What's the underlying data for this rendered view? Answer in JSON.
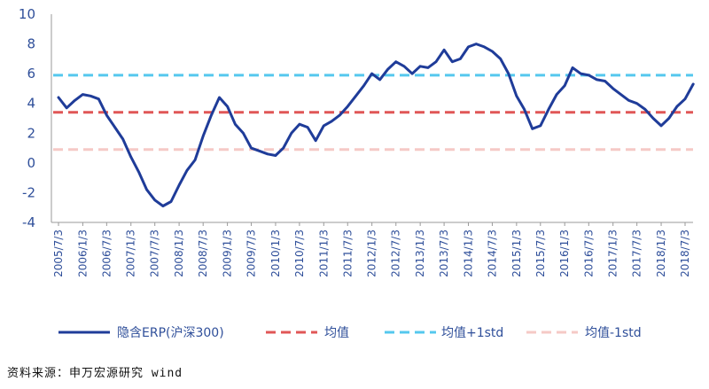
{
  "chart_data": {
    "type": "line",
    "ylim": [
      -4,
      10
    ],
    "yticks": [
      "10",
      "8",
      "6",
      "4",
      "2",
      "0",
      "-2",
      "-4"
    ],
    "x_tick_labels": [
      "2005/7/3",
      "2006/1/3",
      "2006/7/3",
      "2007/1/3",
      "2007/7/3",
      "2008/1/3",
      "2008/7/3",
      "2009/1/3",
      "2009/7/3",
      "2010/1/3",
      "2010/7/3",
      "2011/1/3",
      "2011/7/3",
      "2012/1/3",
      "2012/7/3",
      "2013/1/3",
      "2013/7/3",
      "2014/1/3",
      "2014/7/3",
      "2015/1/3",
      "2015/7/3",
      "2016/1/3",
      "2016/7/3",
      "2017/1/3",
      "2017/7/3",
      "2018/1/3",
      "2018/7/3"
    ],
    "series": [
      {
        "name": "隐含ERP(沪深300)",
        "color": "#1f3c99",
        "style": "solid",
        "points": [
          [
            "2005/7/3",
            4.4
          ],
          [
            "2005/9/3",
            3.7
          ],
          [
            "2005/11/3",
            4.2
          ],
          [
            "2006/1/3",
            4.6
          ],
          [
            "2006/3/3",
            4.5
          ],
          [
            "2006/5/3",
            4.3
          ],
          [
            "2006/7/3",
            3.2
          ],
          [
            "2006/9/3",
            2.4
          ],
          [
            "2006/11/3",
            1.6
          ],
          [
            "2007/1/3",
            0.4
          ],
          [
            "2007/3/3",
            -0.6
          ],
          [
            "2007/5/3",
            -1.8
          ],
          [
            "2007/7/3",
            -2.5
          ],
          [
            "2007/9/3",
            -2.9
          ],
          [
            "2007/11/3",
            -2.6
          ],
          [
            "2008/1/3",
            -1.5
          ],
          [
            "2008/3/3",
            -0.5
          ],
          [
            "2008/5/3",
            0.2
          ],
          [
            "2008/7/3",
            1.8
          ],
          [
            "2008/9/3",
            3.2
          ],
          [
            "2008/11/3",
            4.4
          ],
          [
            "2009/1/3",
            3.8
          ],
          [
            "2009/3/3",
            2.6
          ],
          [
            "2009/5/3",
            2.0
          ],
          [
            "2009/7/3",
            1.0
          ],
          [
            "2009/9/3",
            0.8
          ],
          [
            "2009/11/3",
            0.6
          ],
          [
            "2010/1/3",
            0.5
          ],
          [
            "2010/3/3",
            1.0
          ],
          [
            "2010/5/3",
            2.0
          ],
          [
            "2010/7/3",
            2.6
          ],
          [
            "2010/9/3",
            2.4
          ],
          [
            "2010/11/3",
            1.5
          ],
          [
            "2011/1/3",
            2.5
          ],
          [
            "2011/3/3",
            2.8
          ],
          [
            "2011/5/3",
            3.2
          ],
          [
            "2011/7/3",
            3.8
          ],
          [
            "2011/9/3",
            4.5
          ],
          [
            "2011/11/3",
            5.2
          ],
          [
            "2012/1/3",
            6.0
          ],
          [
            "2012/3/3",
            5.6
          ],
          [
            "2012/5/3",
            6.3
          ],
          [
            "2012/7/3",
            6.8
          ],
          [
            "2012/9/3",
            6.5
          ],
          [
            "2012/11/3",
            6.0
          ],
          [
            "2013/1/3",
            6.5
          ],
          [
            "2013/3/3",
            6.4
          ],
          [
            "2013/5/3",
            6.8
          ],
          [
            "2013/7/3",
            7.6
          ],
          [
            "2013/9/3",
            6.8
          ],
          [
            "2013/11/3",
            7.0
          ],
          [
            "2014/1/3",
            7.8
          ],
          [
            "2014/3/3",
            8.0
          ],
          [
            "2014/5/3",
            7.8
          ],
          [
            "2014/7/3",
            7.5
          ],
          [
            "2014/9/3",
            7.0
          ],
          [
            "2014/11/3",
            6.0
          ],
          [
            "2015/1/3",
            4.5
          ],
          [
            "2015/3/3",
            3.6
          ],
          [
            "2015/5/3",
            2.3
          ],
          [
            "2015/7/3",
            2.5
          ],
          [
            "2015/9/3",
            3.6
          ],
          [
            "2015/11/3",
            4.6
          ],
          [
            "2016/1/3",
            5.2
          ],
          [
            "2016/3/3",
            6.4
          ],
          [
            "2016/5/3",
            6.0
          ],
          [
            "2016/7/3",
            5.9
          ],
          [
            "2016/9/3",
            5.6
          ],
          [
            "2016/11/3",
            5.5
          ],
          [
            "2017/1/3",
            5.0
          ],
          [
            "2017/3/3",
            4.6
          ],
          [
            "2017/5/3",
            4.2
          ],
          [
            "2017/7/3",
            4.0
          ],
          [
            "2017/9/3",
            3.6
          ],
          [
            "2017/11/3",
            3.0
          ],
          [
            "2018/1/3",
            2.5
          ],
          [
            "2018/3/3",
            3.0
          ],
          [
            "2018/5/3",
            3.8
          ],
          [
            "2018/7/3",
            4.3
          ],
          [
            "2018/9/3",
            5.3
          ]
        ]
      },
      {
        "name": "均值",
        "color": "#e05757",
        "style": "dashed",
        "value": 3.4
      },
      {
        "name": "均值+1std",
        "color": "#55c8ee",
        "style": "dashed",
        "value": 5.9
      },
      {
        "name": "均值-1std",
        "color": "#f5c9c6",
        "style": "dashed",
        "value": 0.9
      }
    ]
  },
  "source": "资料来源：申万宏源研究 wind"
}
